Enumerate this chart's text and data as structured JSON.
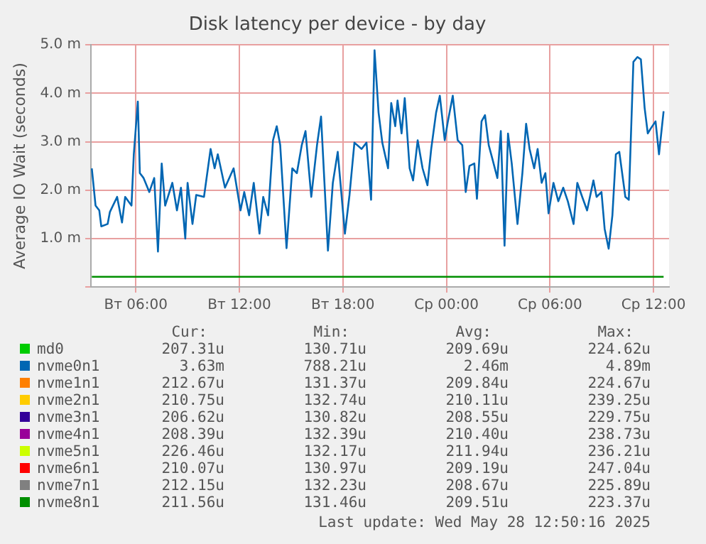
{
  "chart_data": {
    "type": "line",
    "title": "Disk latency per device - by day",
    "ylabel": "Average IO Wait (seconds)",
    "xlim": [
      "2025-05-27T03:24",
      "2025-05-28T12:54"
    ],
    "xticks": [
      {
        "value": "2025-05-27T06:00",
        "label": "Вт 06:00"
      },
      {
        "value": "2025-05-27T12:00",
        "label": "Вт 12:00"
      },
      {
        "value": "2025-05-27T18:00",
        "label": "Вт 18:00"
      },
      {
        "value": "2025-05-28T00:00",
        "label": "Ср 00:00"
      },
      {
        "value": "2025-05-28T06:00",
        "label": "Ср 06:00"
      },
      {
        "value": "2025-05-28T12:00",
        "label": "Ср 12:00"
      }
    ],
    "ylim": [
      0,
      5
    ],
    "yticks": [
      {
        "value": 0,
        "label": null
      },
      {
        "value": 1,
        "label": "1.0 m"
      },
      {
        "value": 2,
        "label": "2.0 m"
      },
      {
        "value": 3,
        "label": "3.0 m"
      },
      {
        "value": 4,
        "label": "4.0 m"
      },
      {
        "value": 5,
        "label": "5.0 m"
      }
    ],
    "grid": true,
    "legend": "bottom",
    "marker": "none",
    "line_style": "solid",
    "series": [
      {
        "name": "nvme0n1",
        "color": "#0066b3",
        "x": [
          "2025-05-27T03:27",
          "2025-05-27T03:40",
          "2025-05-27T03:53",
          "2025-05-27T04:00",
          "2025-05-27T04:22",
          "2025-05-27T04:30",
          "2025-05-27T04:55",
          "2025-05-27T05:12",
          "2025-05-27T05:23",
          "2025-05-27T05:45",
          "2025-05-27T05:53",
          "2025-05-27T06:07",
          "2025-05-27T06:14",
          "2025-05-27T06:27",
          "2025-05-27T06:47",
          "2025-05-27T07:04",
          "2025-05-27T07:17",
          "2025-05-27T07:30",
          "2025-05-27T07:42",
          "2025-05-27T08:07",
          "2025-05-27T08:23",
          "2025-05-27T08:37",
          "2025-05-27T08:52",
          "2025-05-27T09:00",
          "2025-05-27T09:17",
          "2025-05-27T09:30",
          "2025-05-27T09:57",
          "2025-05-27T10:20",
          "2025-05-27T10:34",
          "2025-05-27T10:45",
          "2025-05-27T11:10",
          "2025-05-27T11:40",
          "2025-05-27T12:04",
          "2025-05-27T12:17",
          "2025-05-27T12:34",
          "2025-05-27T12:50",
          "2025-05-27T13:10",
          "2025-05-27T13:23",
          "2025-05-27T13:40",
          "2025-05-27T13:57",
          "2025-05-27T14:10",
          "2025-05-27T14:22",
          "2025-05-27T14:44",
          "2025-05-27T15:04",
          "2025-05-27T15:20",
          "2025-05-27T15:37",
          "2025-05-27T15:50",
          "2025-05-27T16:10",
          "2025-05-27T16:30",
          "2025-05-27T16:44",
          "2025-05-27T17:08",
          "2025-05-27T17:25",
          "2025-05-27T17:42",
          "2025-05-27T18:07",
          "2025-05-27T18:23",
          "2025-05-27T18:40",
          "2025-05-27T19:05",
          "2025-05-27T19:22",
          "2025-05-27T19:38",
          "2025-05-27T19:50",
          "2025-05-27T20:04",
          "2025-05-27T20:17",
          "2025-05-27T20:37",
          "2025-05-27T20:48",
          "2025-05-27T21:02",
          "2025-05-27T21:10",
          "2025-05-27T21:24",
          "2025-05-27T21:35",
          "2025-05-27T21:52",
          "2025-05-27T22:04",
          "2025-05-27T22:20",
          "2025-05-27T22:37",
          "2025-05-27T22:54",
          "2025-05-27T23:07",
          "2025-05-27T23:24",
          "2025-05-27T23:37",
          "2025-05-27T23:54",
          "2025-05-28T00:05",
          "2025-05-28T00:22",
          "2025-05-28T00:39",
          "2025-05-28T00:55",
          "2025-05-28T01:07",
          "2025-05-28T01:20",
          "2025-05-28T01:37",
          "2025-05-28T01:46",
          "2025-05-28T02:02",
          "2025-05-28T02:14",
          "2025-05-28T02:27",
          "2025-05-28T02:40",
          "2025-05-28T02:57",
          "2025-05-28T03:09",
          "2025-05-28T03:22",
          "2025-05-28T03:34",
          "2025-05-28T03:47",
          "2025-05-28T04:07",
          "2025-05-28T04:24",
          "2025-05-28T04:37",
          "2025-05-28T04:49",
          "2025-05-28T05:05",
          "2025-05-28T05:17",
          "2025-05-28T05:31",
          "2025-05-28T05:44",
          "2025-05-28T05:55",
          "2025-05-28T06:12",
          "2025-05-28T06:29",
          "2025-05-28T06:46",
          "2025-05-28T07:02",
          "2025-05-28T07:22",
          "2025-05-28T07:35",
          "2025-05-28T07:52",
          "2025-05-28T08:09",
          "2025-05-28T08:31",
          "2025-05-28T08:42",
          "2025-05-28T08:59",
          "2025-05-28T09:10",
          "2025-05-28T09:24",
          "2025-05-28T09:37",
          "2025-05-28T09:49",
          "2025-05-28T10:01",
          "2025-05-28T10:22",
          "2025-05-28T10:34",
          "2025-05-28T10:50",
          "2025-05-28T11:04",
          "2025-05-28T11:16",
          "2025-05-28T11:29",
          "2025-05-28T11:40",
          "2025-05-28T11:50",
          "2025-05-28T12:07",
          "2025-05-28T12:19",
          "2025-05-28T12:35"
        ],
        "values": [
          2.45,
          1.68,
          1.58,
          1.25,
          1.3,
          1.55,
          1.86,
          1.33,
          1.86,
          1.68,
          2.74,
          3.83,
          2.35,
          2.25,
          1.96,
          2.25,
          0.73,
          2.55,
          1.68,
          2.15,
          1.58,
          2.05,
          1.0,
          2.15,
          1.3,
          1.9,
          1.86,
          2.85,
          2.45,
          2.74,
          2.05,
          2.45,
          1.58,
          1.96,
          1.48,
          2.15,
          1.1,
          1.86,
          1.48,
          3.03,
          3.32,
          2.93,
          0.8,
          2.45,
          2.35,
          2.93,
          3.22,
          1.86,
          2.93,
          3.52,
          0.75,
          2.15,
          2.79,
          1.1,
          1.9,
          2.98,
          2.85,
          2.98,
          1.8,
          4.89,
          3.6,
          2.98,
          2.45,
          3.8,
          3.32,
          3.85,
          3.17,
          3.9,
          2.45,
          2.2,
          3.03,
          2.45,
          2.1,
          2.85,
          3.6,
          3.95,
          3.03,
          3.42,
          3.95,
          3.03,
          2.93,
          1.96,
          2.5,
          2.55,
          1.82,
          3.42,
          3.55,
          2.93,
          2.64,
          2.25,
          3.22,
          0.85,
          3.17,
          2.55,
          1.3,
          2.35,
          3.37,
          2.85,
          2.45,
          2.85,
          2.15,
          2.35,
          1.52,
          2.15,
          1.77,
          2.05,
          1.77,
          1.3,
          2.15,
          1.86,
          1.58,
          2.2,
          1.86,
          1.96,
          1.2,
          0.79,
          1.48,
          2.74,
          2.79,
          1.86,
          1.8,
          4.65,
          4.75,
          4.7,
          3.7,
          3.17,
          3.27,
          3.42,
          2.74,
          3.63
        ]
      },
      {
        "name": "nvme1n1",
        "color": "#ff7f00"
      },
      {
        "name": "nvme2n1",
        "color": "#ffcc00"
      },
      {
        "name": "nvme3n1",
        "color": "#330099"
      },
      {
        "name": "nvme4n1",
        "color": "#990099"
      },
      {
        "name": "nvme5n1",
        "color": "#ccff00"
      },
      {
        "name": "nvme6n1",
        "color": "#ff0000"
      },
      {
        "name": "nvme7n1",
        "color": "#808080"
      },
      {
        "name": "md0",
        "color": "#00cc00"
      },
      {
        "name": "nvme8n1",
        "color": "#008f00",
        "x": [
          "2025-05-27T03:27",
          "2025-05-28T12:35"
        ],
        "values": [
          0.21,
          0.21
        ]
      }
    ],
    "annotations": [
      "Cur:",
      "Min:",
      "Avg:",
      "Max:",
      "207.31u",
      "130.71u",
      "209.69u",
      "224.62u",
      "3.63m",
      "788.21u",
      "2.46m",
      "4.89m",
      "212.67u",
      "131.37u",
      "209.84u",
      "224.67u",
      "210.75u",
      "132.74u",
      "210.11u",
      "239.25u",
      "206.62u",
      "130.82u",
      "208.55u",
      "229.75u",
      "208.39u",
      "132.39u",
      "210.40u",
      "238.73u",
      "226.46u",
      "132.17u",
      "211.94u",
      "236.21u",
      "210.07u",
      "130.97u",
      "209.19u",
      "247.04u",
      "212.15u",
      "132.23u",
      "208.67u",
      "225.89u",
      "211.56u",
      "131.46u",
      "209.51u",
      "223.37u",
      "Last update: Wed May 28 12:50:16 2025"
    ]
  }
}
